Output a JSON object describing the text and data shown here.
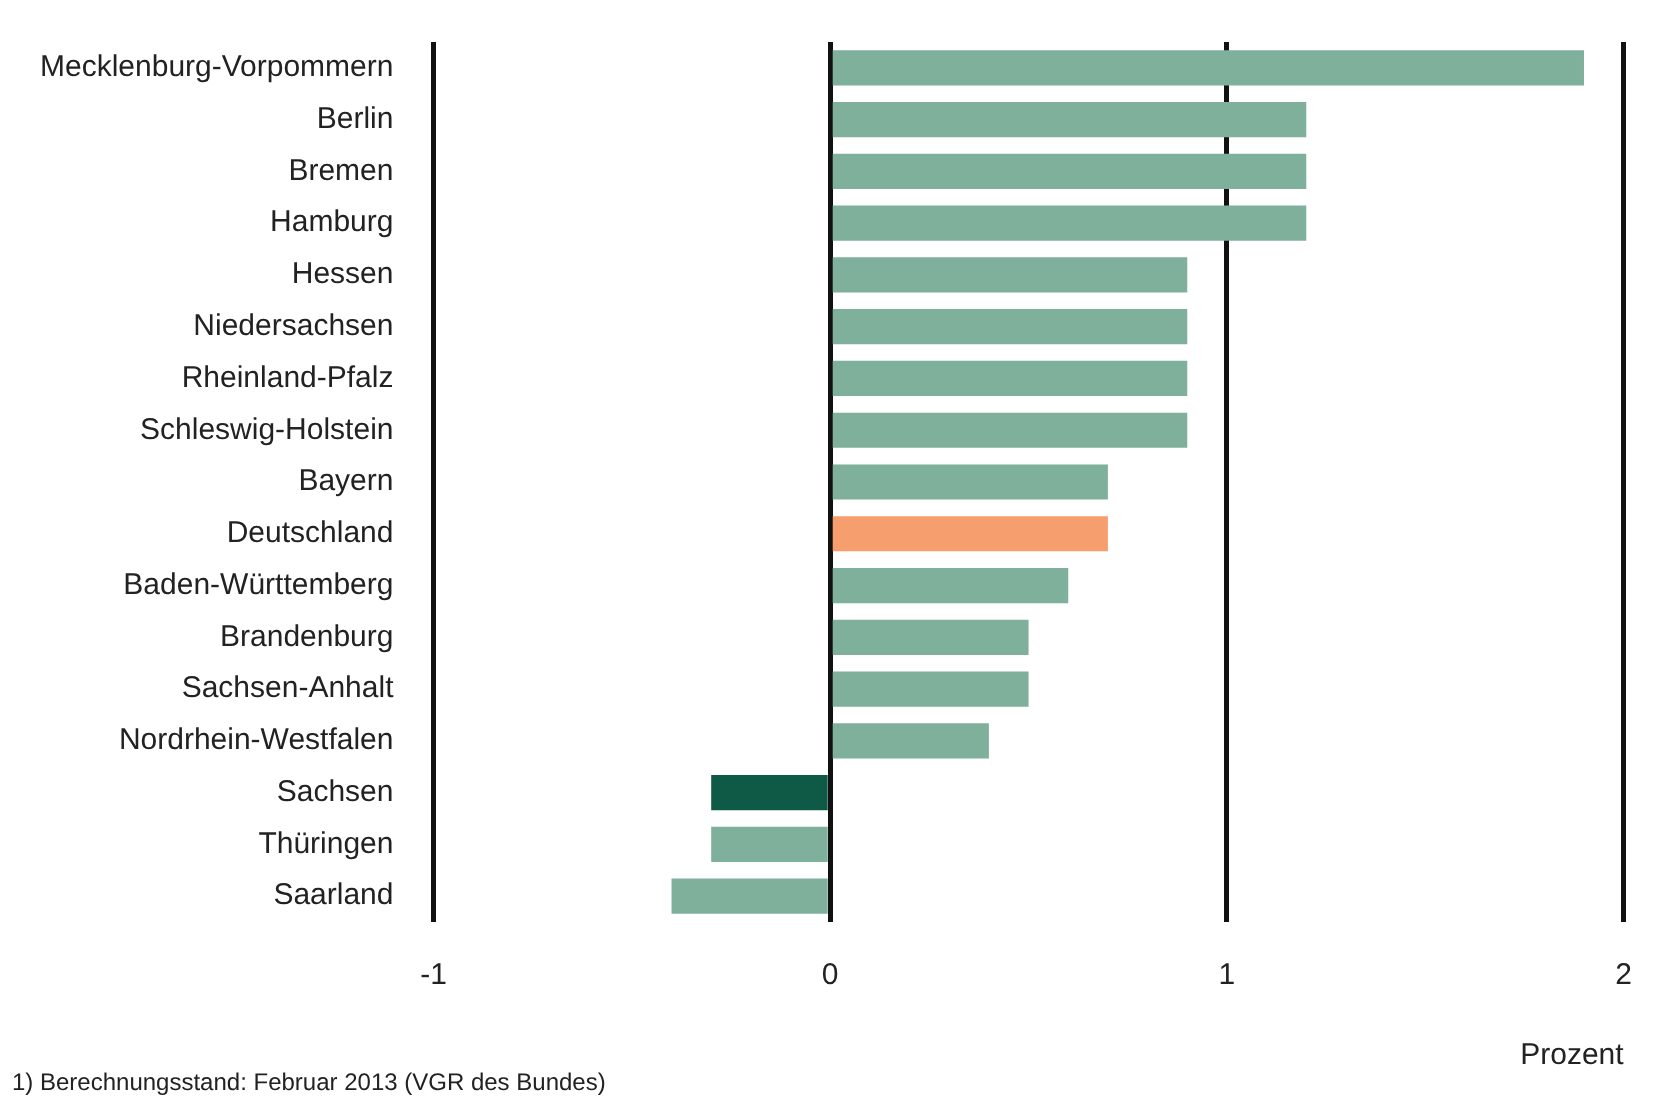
{
  "chart_data": {
    "type": "bar",
    "orientation": "horizontal",
    "xlabel": "Prozent",
    "categories": [
      "Mecklenburg-Vorpommern",
      "Berlin",
      "Bremen",
      "Hamburg",
      "Hessen",
      "Niedersachsen",
      "Rheinland-Pfalz",
      "Schleswig-Holstein",
      "Bayern",
      "Deutschland",
      "Baden-Württemberg",
      "Brandenburg",
      "Sachsen-Anhalt",
      "Nordrhein-Westfalen",
      "Sachsen",
      "Thüringen",
      "Saarland"
    ],
    "values": [
      1.9,
      1.2,
      1.2,
      1.2,
      0.9,
      0.9,
      0.9,
      0.9,
      0.7,
      0.7,
      0.6,
      0.5,
      0.5,
      0.4,
      -0.3,
      -0.3,
      -0.4
    ],
    "colors": [
      "#7fb09c",
      "#7fb09c",
      "#7fb09c",
      "#7fb09c",
      "#7fb09c",
      "#7fb09c",
      "#7fb09c",
      "#7fb09c",
      "#7fb09c",
      "#f79e6e",
      "#7fb09c",
      "#7fb09c",
      "#7fb09c",
      "#7fb09c",
      "#0f5a46",
      "#7fb09c",
      "#7fb09c"
    ],
    "xlim": [
      -1,
      2
    ],
    "xticks": [
      -1,
      0,
      1,
      2
    ],
    "grid": "x",
    "annotations": [
      "1) Berechnungsstand: Februar 2013 (VGR des Bundes)"
    ]
  }
}
